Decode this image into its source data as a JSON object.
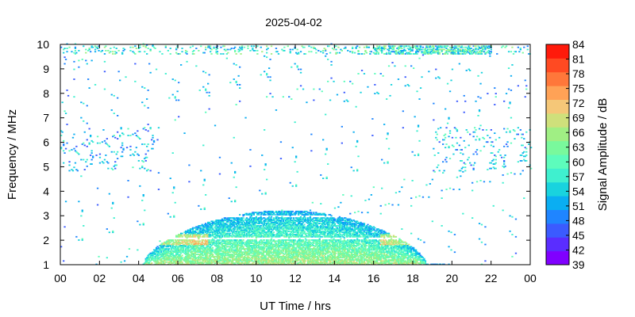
{
  "chart_data": {
    "type": "heatmap",
    "title": "2025-04-02",
    "xlabel": "UT Time / hrs",
    "ylabel": "Frequency / MHz",
    "colorbar_label": "Signal Amplitude / dB",
    "xlim": [
      0,
      24
    ],
    "ylim": [
      1,
      10
    ],
    "x_ticks": [
      "00",
      "02",
      "04",
      "06",
      "08",
      "10",
      "12",
      "14",
      "16",
      "18",
      "20",
      "22",
      "00"
    ],
    "y_ticks": [
      "1",
      "2",
      "3",
      "4",
      "5",
      "6",
      "7",
      "8",
      "9",
      "10"
    ],
    "colorbar_range": [
      39,
      84
    ],
    "colorbar_ticks": [
      "84",
      "81",
      "78",
      "75",
      "72",
      "69",
      "66",
      "63",
      "60",
      "57",
      "54",
      "51",
      "48",
      "45",
      "42",
      "39"
    ],
    "colorbar_colors": [
      "#8000ff",
      "#5a2dff",
      "#3b5bff",
      "#1f85ff",
      "#0aaef2",
      "#19d3de",
      "#3ff0cf",
      "#5dfcbc",
      "#79f99c",
      "#a0ef84",
      "#cfe07b",
      "#f5c778",
      "#ffa256",
      "#ff773a",
      "#ff4a22",
      "#ff1a0b"
    ],
    "grid": false,
    "regions": [
      {
        "name": "daytime band",
        "x": [
          4.2,
          19.8
        ],
        "freq_top_mhz": 3.2,
        "amplitude_db": [
          50,
          78
        ]
      },
      {
        "name": "noise band",
        "x": [
          0,
          24
        ],
        "freq_mhz": [
          9.4,
          9.9
        ],
        "amplitude_db": [
          45,
          72
        ]
      },
      {
        "name": "scattered noise",
        "x": [
          0,
          24
        ],
        "freq_mhz": [
          4.5,
          8.5
        ],
        "amplitude_db": [
          45,
          60
        ]
      }
    ]
  }
}
